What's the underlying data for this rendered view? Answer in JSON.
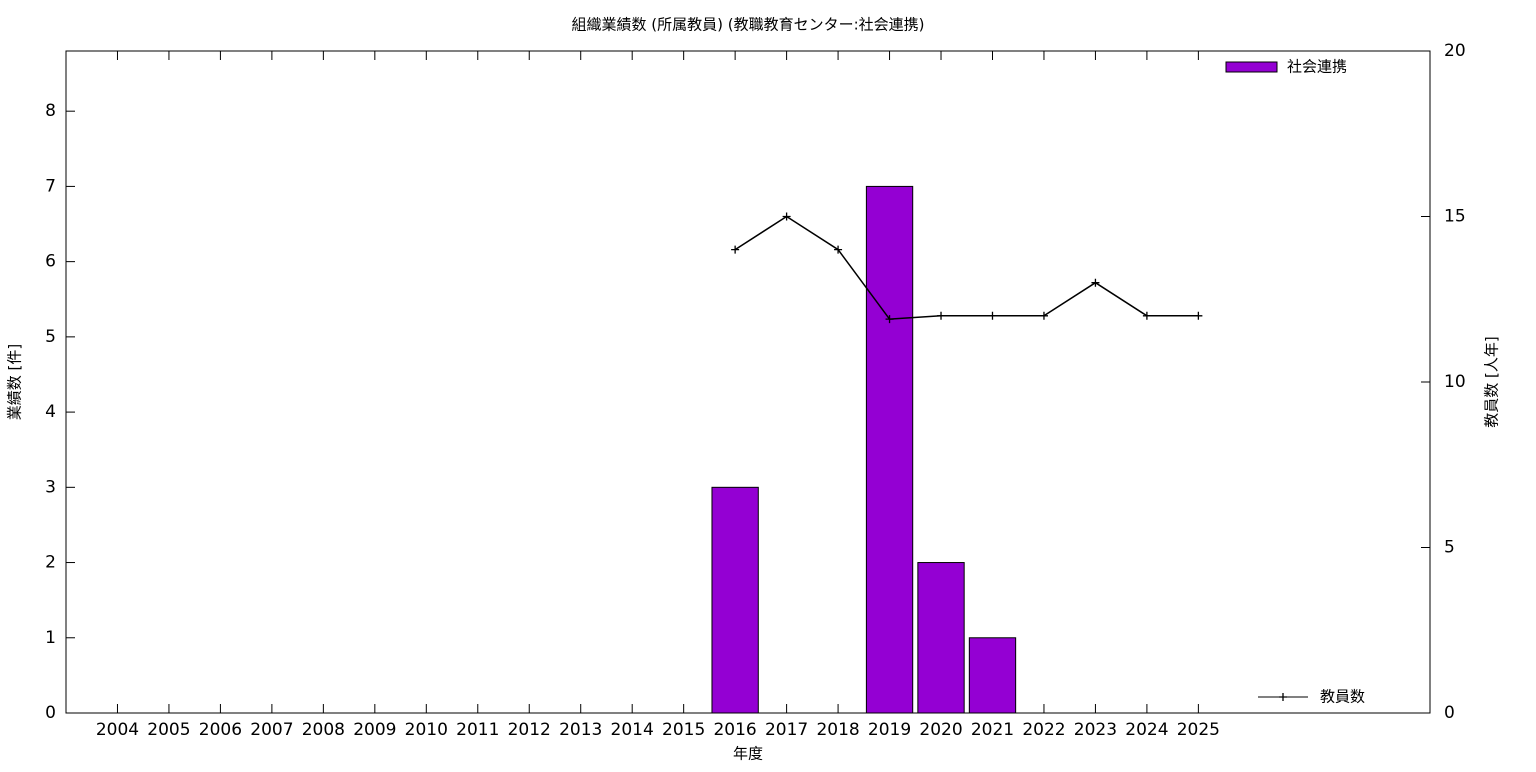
{
  "chart_data": {
    "type": "bar",
    "title": "組織業績数 (所属教員) (教職教育センター:社会連携)",
    "x_label": "年度",
    "y_label": "業績数 [件]",
    "y2_label": "教員数 [人年]",
    "categories": [
      "2004",
      "2005",
      "2006",
      "2007",
      "2008",
      "2009",
      "2010",
      "2011",
      "2012",
      "2013",
      "2014",
      "2015",
      "2016",
      "2017",
      "2018",
      "2019",
      "2020",
      "2021",
      "2022",
      "2023",
      "2024",
      "2025"
    ],
    "series": [
      {
        "name": "社会連携",
        "type": "bar",
        "color": "#9400d3",
        "values": [
          0,
          0,
          0,
          0,
          0,
          0,
          0,
          0,
          0,
          0,
          0,
          0,
          3,
          0,
          0,
          7,
          2,
          1,
          0,
          0,
          0,
          0
        ]
      },
      {
        "name": "教員数",
        "type": "line",
        "axis": "y2",
        "color": "#000000",
        "values": [
          null,
          null,
          null,
          null,
          null,
          null,
          null,
          null,
          null,
          null,
          null,
          null,
          14,
          15,
          14,
          11.9,
          12,
          12,
          12,
          13,
          12,
          12
        ]
      }
    ],
    "ylim": [
      0,
      8.8
    ],
    "yticks": [
      0,
      1,
      2,
      3,
      4,
      5,
      6,
      7,
      8
    ],
    "y2lim": [
      0,
      20
    ],
    "y2ticks": [
      0,
      5,
      10,
      15,
      20
    ],
    "legend": [
      "top-right",
      "bottom-right"
    ],
    "grid": false
  }
}
